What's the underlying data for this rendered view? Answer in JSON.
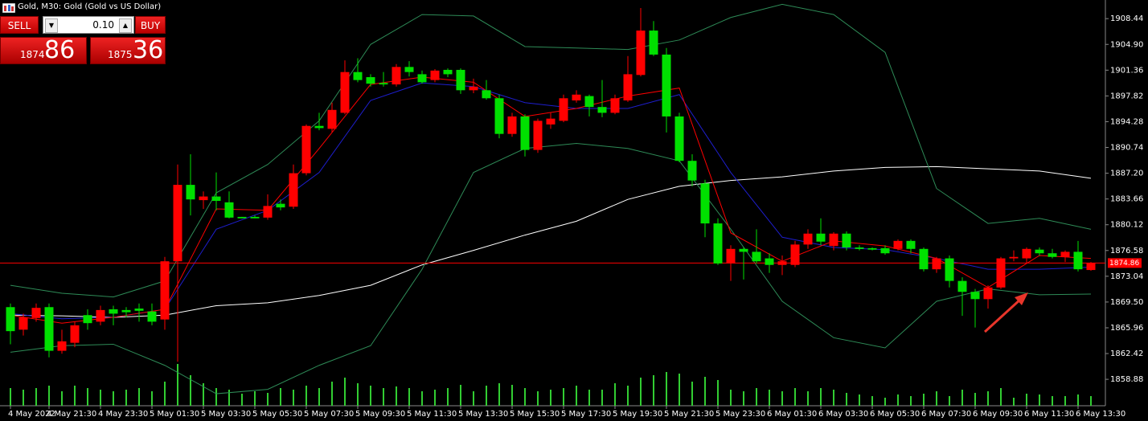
{
  "header": {
    "title": "Gold, M30:  Gold (Gold vs US Dollar)"
  },
  "trade_panel": {
    "sell": "SELL",
    "buy": "BUY",
    "lot": "0.10",
    "bid_big": "1874",
    "bid_small": "86",
    "ask_big": "1875",
    "ask_small": "36"
  },
  "chart_data": {
    "type": "candlestick",
    "categories": [
      "4 May 2022",
      null,
      null,
      "4 May 21:30",
      null,
      null,
      null,
      "4 May 23:30",
      null,
      null,
      null,
      "5 May 01:30",
      null,
      null,
      null,
      "5 May 03:30",
      null,
      null,
      null,
      "5 May 05:30",
      null,
      null,
      null,
      "5 May 07:30",
      null,
      null,
      null,
      "5 May 09:30",
      null,
      null,
      null,
      "5 May 11:30",
      null,
      null,
      null,
      "5 May 13:30",
      null,
      null,
      null,
      "5 May 15:30",
      null,
      null,
      null,
      "5 May 17:30",
      null,
      null,
      null,
      "5 May 19:30",
      null,
      null,
      null,
      "5 May 21:30",
      null,
      null,
      null,
      "5 May 23:30",
      null,
      null,
      null,
      "6 May 01:30",
      null,
      null,
      null,
      "6 May 03:30",
      null,
      null,
      null,
      "6 May 05:30",
      null,
      null,
      null,
      "6 May 07:30",
      null,
      null,
      null,
      "6 May 09:30",
      null,
      null,
      null,
      "6 May 11:30",
      null,
      null,
      null,
      "6 May 13:30",
      null
    ],
    "open": [
      1868.8,
      1865.7,
      1867.3,
      1868.8,
      1862.8,
      1863.9,
      1867.7,
      1866.8,
      1868.5,
      1868.4,
      1868.6,
      1868.2,
      1867.1,
      1875.1,
      1885.6,
      1883.5,
      1884.0,
      1883.2,
      1881.2,
      1881.2,
      1881.1,
      1883.0,
      1882.6,
      1887.2,
      1893.7,
      1893.3,
      1895.5,
      1901.1,
      1900.4,
      1899.6,
      1899.4,
      1901.8,
      1900.8,
      1900.0,
      1901.4,
      1901.4,
      1898.6,
      1898.6,
      1897.5,
      1892.6,
      1895.0,
      1890.4,
      1893.9,
      1894.4,
      1897.2,
      1897.8,
      1896.3,
      1895.5,
      1897.2,
      1900.7,
      1906.8,
      1903.5,
      1895.0,
      1888.9,
      1885.8,
      1880.3,
      1874.8,
      1876.8,
      1876.4,
      1875.5,
      1874.6,
      1874.6,
      1877.4,
      1878.9,
      1877.2,
      1878.9,
      1877.0,
      1876.9,
      1876.9,
      1876.8,
      1877.9,
      1876.8,
      1874.0,
      1875.5,
      1872.4,
      1870.9,
      1869.9,
      1871.5,
      1875.5,
      1875.5,
      1876.7,
      1876.2,
      1875.7,
      1876.4,
      1873.9
    ],
    "high": [
      1869.3,
      1867.9,
      1869.3,
      1869.3,
      1865.7,
      1866.8,
      1868.5,
      1869.0,
      1869.0,
      1868.8,
      1869.3,
      1869.3,
      1875.7,
      1888.4,
      1889.8,
      1884.7,
      1887.3,
      1884.7,
      1881.2,
      1881.4,
      1884.3,
      1883.6,
      1888.4,
      1893.9,
      1895.5,
      1896.9,
      1902.7,
      1903.0,
      1900.8,
      1901.1,
      1902.2,
      1902.6,
      1901.3,
      1901.5,
      1901.6,
      1901.6,
      1900.2,
      1900.0,
      1898.0,
      1895.5,
      1895.3,
      1894.7,
      1895.5,
      1898.0,
      1898.6,
      1898.0,
      1900.0,
      1898.0,
      1903.3,
      1909.9,
      1908.1,
      1904.4,
      1895.5,
      1889.8,
      1886.3,
      1881.0,
      1877.3,
      1877.0,
      1879.5,
      1876.2,
      1875.9,
      1877.9,
      1879.5,
      1881.0,
      1879.1,
      1879.2,
      1877.3,
      1877.0,
      1877.3,
      1878.1,
      1878.1,
      1877.0,
      1875.7,
      1875.9,
      1872.9,
      1871.3,
      1871.8,
      1875.7,
      1876.6,
      1877.0,
      1877.0,
      1876.8,
      1876.6,
      1877.9,
      1875.0
    ],
    "low": [
      1863.7,
      1864.9,
      1866.8,
      1861.9,
      1862.4,
      1863.3,
      1865.7,
      1866.3,
      1866.3,
      1867.4,
      1866.8,
      1866.3,
      1865.7,
      1861.3,
      1881.4,
      1882.3,
      1882.1,
      1881.0,
      1881.0,
      1881.0,
      1880.8,
      1882.1,
      1882.3,
      1886.9,
      1893.1,
      1892.8,
      1895.3,
      1899.7,
      1899.1,
      1899.1,
      1899.1,
      1900.5,
      1899.5,
      1899.7,
      1900.4,
      1898.1,
      1898.2,
      1897.3,
      1892.0,
      1892.2,
      1889.5,
      1890.0,
      1893.3,
      1894.2,
      1896.9,
      1895.0,
      1894.9,
      1895.3,
      1897.0,
      1900.5,
      1903.3,
      1892.8,
      1888.7,
      1885.4,
      1878.4,
      1874.6,
      1872.4,
      1872.6,
      1874.8,
      1873.5,
      1873.2,
      1874.3,
      1876.8,
      1877.3,
      1876.6,
      1876.6,
      1876.6,
      1876.6,
      1876.0,
      1876.6,
      1876.2,
      1873.7,
      1873.5,
      1871.5,
      1867.6,
      1866.0,
      1868.6,
      1871.3,
      1875.1,
      1874.8,
      1875.9,
      1875.5,
      1875.0,
      1873.7,
      1873.8
    ],
    "close": [
      1865.5,
      1867.4,
      1868.7,
      1862.8,
      1864.1,
      1866.3,
      1866.6,
      1868.4,
      1867.9,
      1868.1,
      1868.3,
      1866.8,
      1875.1,
      1885.6,
      1883.6,
      1884.0,
      1883.4,
      1881.1,
      1881.0,
      1881.0,
      1882.7,
      1882.5,
      1887.2,
      1893.7,
      1893.4,
      1895.9,
      1901.1,
      1900.0,
      1899.5,
      1899.4,
      1901.8,
      1901.1,
      1899.7,
      1901.3,
      1900.8,
      1898.6,
      1899.1,
      1897.5,
      1892.6,
      1895.0,
      1890.4,
      1894.4,
      1894.7,
      1897.5,
      1898.0,
      1896.3,
      1895.5,
      1897.5,
      1900.8,
      1906.8,
      1903.5,
      1895.0,
      1888.9,
      1886.2,
      1880.3,
      1874.8,
      1876.8,
      1876.4,
      1875.1,
      1874.6,
      1875.1,
      1877.4,
      1878.9,
      1877.8,
      1878.9,
      1877.0,
      1876.8,
      1876.7,
      1876.2,
      1877.9,
      1876.8,
      1874.0,
      1875.5,
      1872.4,
      1870.9,
      1869.9,
      1871.5,
      1875.5,
      1875.7,
      1876.8,
      1876.2,
      1875.7,
      1876.4,
      1874.0,
      1874.9
    ],
    "volume": [
      22,
      20,
      22,
      25,
      18,
      25,
      22,
      20,
      18,
      20,
      22,
      18,
      30,
      52,
      38,
      28,
      22,
      20,
      15,
      18,
      16,
      22,
      20,
      25,
      22,
      30,
      35,
      28,
      25,
      22,
      24,
      22,
      18,
      20,
      22,
      26,
      18,
      25,
      28,
      26,
      22,
      18,
      20,
      22,
      25,
      20,
      20,
      28,
      25,
      35,
      38,
      42,
      40,
      30,
      36,
      32,
      20,
      18,
      22,
      20,
      18,
      22,
      18,
      22,
      20,
      16,
      14,
      12,
      10,
      14,
      12,
      15,
      18,
      12,
      20,
      16,
      18,
      22,
      10,
      15,
      14,
      12,
      12,
      14,
      12
    ],
    "up_color": "#ff0000",
    "down_color": "#00e000",
    "volume_color": "#32cd32",
    "indicators": {
      "x": [
        0,
        4,
        8,
        12,
        16,
        20,
        24,
        28,
        32,
        36,
        40,
        44,
        48,
        52,
        56,
        60,
        64,
        68,
        72,
        76,
        80,
        84
      ],
      "series": [
        {
          "color": "#ffffff",
          "values": [
            1867.7,
            1867.6,
            1867.4,
            1867.7,
            1869.0,
            1869.4,
            1870.4,
            1871.8,
            1874.6,
            1876.6,
            1878.7,
            1880.6,
            1883.6,
            1885.4,
            1886.2,
            1886.7,
            1887.5,
            1888.0,
            1888.1,
            1887.8,
            1887.5,
            1886.5
          ]
        },
        {
          "color": "#2e8b57",
          "values": [
            1871.8,
            1870.7,
            1870.2,
            1872.4,
            1884.5,
            1888.4,
            1894.4,
            1904.9,
            1909.0,
            1908.8,
            1904.6,
            1904.4,
            1904.2,
            1905.5,
            1908.6,
            1910.4,
            1909.0,
            1903.8,
            1885.1,
            1880.3,
            1881.0,
            1879.5
          ]
        },
        {
          "color": "#2e8b57",
          "values": [
            1862.6,
            1863.5,
            1863.7,
            1860.8,
            1856.9,
            1857.5,
            1860.8,
            1863.5,
            1874.0,
            1887.3,
            1890.6,
            1891.3,
            1890.6,
            1888.9,
            1879.5,
            1869.6,
            1864.6,
            1863.2,
            1869.6,
            1871.3,
            1870.5,
            1870.6
          ]
        },
        {
          "color": "#1e1ecd",
          "values": [
            1867.9,
            1867.2,
            1867.4,
            1868.5,
            1879.5,
            1882.1,
            1887.3,
            1897.2,
            1899.6,
            1899.1,
            1896.9,
            1896.1,
            1896.1,
            1898.0,
            1887.3,
            1878.4,
            1877.0,
            1876.7,
            1875.5,
            1874.0,
            1874.0,
            1874.3
          ]
        },
        {
          "color": "#ff0000",
          "values": [
            1867.7,
            1866.6,
            1867.4,
            1868.5,
            1882.3,
            1882.1,
            1890.6,
            1899.4,
            1900.4,
            1899.7,
            1895.0,
            1896.1,
            1897.8,
            1898.9,
            1879.0,
            1875.1,
            1877.9,
            1877.2,
            1875.5,
            1871.5,
            1875.9,
            1875.5
          ]
        }
      ]
    },
    "current_price": {
      "value": 1874.86,
      "label": "1874.86",
      "color": "#ff0000"
    },
    "ylim": [
      1855.25,
      1911.0
    ],
    "yticks": [
      1908.44,
      {
        "value": 1904.9,
        "label": "1904.90"
      },
      1901.36,
      1897.82,
      1894.28,
      1890.74,
      {
        "value": 1887.2,
        "label": "1887.20"
      },
      1883.66,
      1880.12,
      1876.58,
      1873.04,
      {
        "value": 1869.5,
        "label": "1869.50"
      },
      1865.96,
      1862.42,
      1858.88
    ]
  }
}
